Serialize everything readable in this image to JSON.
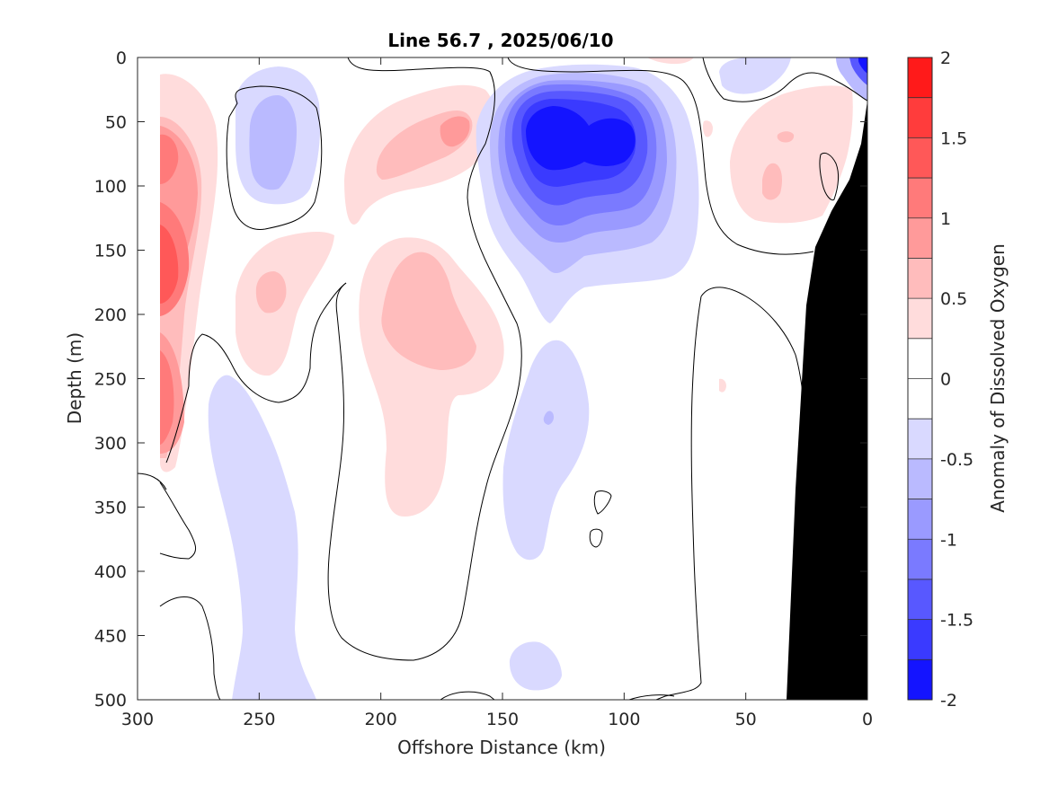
{
  "chart_data": {
    "type": "heatmap",
    "subtype": "filled-contour",
    "title": "Line 56.7 , 2025/06/10",
    "xlabel": "Offshore Distance (km)",
    "ylabel": "Depth (m)",
    "colorbar_label": "Anomaly of Dissolved Oxygen",
    "xlim": [
      300,
      0
    ],
    "x_reversed": true,
    "ylim": [
      0,
      500
    ],
    "y_reversed": true,
    "xticks": [
      300,
      250,
      200,
      150,
      100,
      50,
      0
    ],
    "yticks": [
      0,
      50,
      100,
      150,
      200,
      250,
      300,
      350,
      400,
      450,
      500
    ],
    "colorbar_ticks": [
      "2",
      "1.5",
      "1",
      "0.5",
      "0",
      "-0.5",
      "-1",
      "-1.5",
      "-2"
    ],
    "colorbar_levels": [
      2,
      1.75,
      1.5,
      1.25,
      1,
      0.75,
      0.5,
      0.25,
      0,
      -0.25,
      -0.5,
      -0.75,
      -1,
      -1.25,
      -1.5,
      -1.75,
      -2
    ],
    "colorbar_colors": [
      "#ff1a1a",
      "#ff3c3c",
      "#ff5858",
      "#ff7a7a",
      "#ff9a9a",
      "#ffbcbc",
      "#ffdcdc",
      "#ffffff",
      "#ffffff",
      "#d9d9ff",
      "#babaff",
      "#9a9aff",
      "#7a7aff",
      "#5858ff",
      "#3a3aff",
      "#1414ff"
    ],
    "bathymetry_color": "#000000",
    "grid": false,
    "legend": "colorbar-right",
    "features": [
      {
        "name": "oxygen-low-core",
        "sign": "negative",
        "x_range": [
          150,
          80
        ],
        "y_range": [
          10,
          210
        ],
        "min_value": -2.0,
        "center": [
          125,
          70
        ]
      },
      {
        "name": "coastal-surface-low",
        "sign": "negative",
        "x_range": [
          12,
          0
        ],
        "y_range": [
          0,
          20
        ],
        "min_value": -1.75
      },
      {
        "name": "offshore-edge-high",
        "sign": "positive",
        "x_range": [
          300,
          270
        ],
        "y_range": [
          10,
          320
        ],
        "max_value": 1.5,
        "center": [
          290,
          160
        ]
      },
      {
        "name": "mid-high-a",
        "sign": "positive",
        "x_range": [
          205,
          145
        ],
        "y_range": [
          30,
          150
        ],
        "max_value": 0.75
      },
      {
        "name": "mid-high-b",
        "sign": "positive",
        "x_range": [
          210,
          155
        ],
        "y_range": [
          150,
          350
        ],
        "max_value": 0.75
      },
      {
        "name": "upper-high-c",
        "sign": "positive",
        "x_range": [
          270,
          225
        ],
        "y_range": [
          135,
          250
        ],
        "max_value": 0.5
      },
      {
        "name": "nearshore-high",
        "sign": "positive",
        "x_range": [
          55,
          5
        ],
        "y_range": [
          20,
          130
        ],
        "max_value": 0.75
      },
      {
        "name": "low-patch-250km",
        "sign": "negative",
        "x_range": [
          270,
          225
        ],
        "y_range": [
          30,
          120
        ],
        "min_value": -0.5
      },
      {
        "name": "deep-low-250km",
        "sign": "negative",
        "x_range": [
          265,
          225
        ],
        "y_range": [
          240,
          500
        ],
        "min_value": -0.25
      },
      {
        "name": "deep-low-130km",
        "sign": "negative",
        "x_range": [
          155,
          115
        ],
        "y_range": [
          220,
          420
        ],
        "min_value": -0.5
      },
      {
        "name": "near-bottom-low",
        "sign": "negative",
        "x_range": [
          150,
          130
        ],
        "y_range": [
          450,
          495
        ],
        "min_value": -0.25
      }
    ]
  }
}
